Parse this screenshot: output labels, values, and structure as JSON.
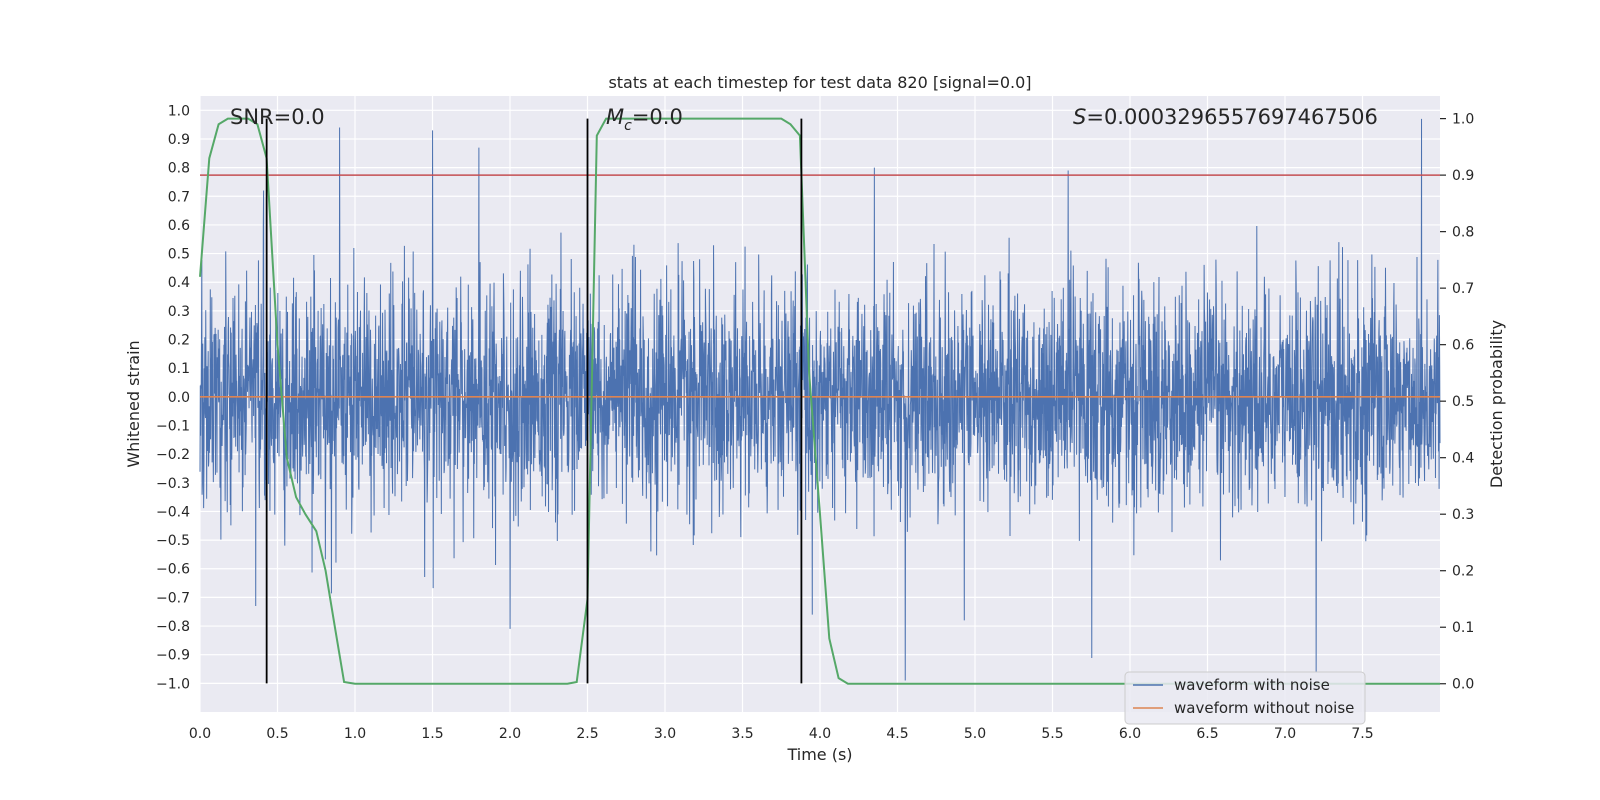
{
  "chart_data": {
    "type": "line",
    "title": "stats at each timestep for test data 820 [signal=0.0]",
    "xlabel": "Time (s)",
    "ylabel_left": "Whitened strain",
    "ylabel_right": "Detection probability",
    "xlim": [
      0.0,
      8.0
    ],
    "ylim_left": [
      -1.1,
      1.05
    ],
    "ylim_right": [
      -0.05,
      1.04
    ],
    "x_ticks": [
      "0.0",
      "0.5",
      "1.0",
      "1.5",
      "2.0",
      "2.5",
      "3.0",
      "3.5",
      "4.0",
      "4.5",
      "5.0",
      "5.5",
      "6.0",
      "6.5",
      "7.0",
      "7.5"
    ],
    "x_tick_values": [
      0,
      0.5,
      1,
      1.5,
      2,
      2.5,
      3,
      3.5,
      4,
      4.5,
      5,
      5.5,
      6,
      6.5,
      7,
      7.5
    ],
    "y_left_ticks": [
      "1.0",
      "0.9",
      "0.8",
      "0.7",
      "0.6",
      "0.5",
      "0.4",
      "0.3",
      "0.2",
      "0.1",
      "0.0",
      "−0.1",
      "−0.2",
      "−0.3",
      "−0.4",
      "−0.5",
      "−0.6",
      "−0.7",
      "−0.8",
      "−0.9",
      "−1.0"
    ],
    "y_left_tick_values": [
      1.0,
      0.9,
      0.8,
      0.7,
      0.6,
      0.5,
      0.4,
      0.3,
      0.2,
      0.1,
      0.0,
      -0.1,
      -0.2,
      -0.3,
      -0.4,
      -0.5,
      -0.6,
      -0.7,
      -0.8,
      -0.9,
      -1.0
    ],
    "y_right_ticks": [
      "1.0",
      "0.9",
      "0.8",
      "0.7",
      "0.6",
      "0.5",
      "0.4",
      "0.3",
      "0.2",
      "0.1",
      "0.0"
    ],
    "y_right_tick_values": [
      1.0,
      0.9,
      0.8,
      0.7,
      0.6,
      0.5,
      0.4,
      0.3,
      0.2,
      0.1,
      0.0
    ],
    "annotations": {
      "snr": "SNR=0.0",
      "mc_symbol": "M",
      "mc_sub": "c",
      "mc_value": "=0.0",
      "s_symbol": "S",
      "s_value": "=0.0003296557697467506"
    },
    "series": [
      {
        "name": "waveform with noise",
        "axis": "left",
        "color": "#4c72b0",
        "kind": "noise",
        "approx_range": [
          -0.99,
          0.97
        ],
        "note": "dense whitened-noise trace, 4096 samples over 8 s"
      },
      {
        "name": "waveform without noise",
        "axis": "left",
        "color": "#dd8452",
        "x": [
          0.0,
          8.0
        ],
        "y": [
          0.0,
          0.0
        ]
      },
      {
        "name": "detection probability",
        "axis": "right",
        "color": "#55a868",
        "x": [
          0.0,
          0.06,
          0.12,
          0.18,
          0.25,
          0.31,
          0.37,
          0.43,
          0.5,
          0.56,
          0.62,
          0.68,
          0.75,
          0.81,
          0.87,
          0.93,
          1.0,
          2.3,
          2.37,
          2.43,
          2.5,
          2.56,
          2.62,
          2.68,
          3.7,
          3.75,
          3.81,
          3.87,
          3.93,
          4.0,
          4.06,
          4.12,
          4.18,
          8.0
        ],
        "y": [
          0.72,
          0.93,
          0.99,
          1.0,
          1.0,
          1.0,
          0.99,
          0.93,
          0.6,
          0.4,
          0.33,
          0.3,
          0.27,
          0.2,
          0.1,
          0.003,
          0.0,
          0.0,
          0.0,
          0.003,
          0.15,
          0.97,
          1.0,
          1.0,
          1.0,
          1.0,
          0.99,
          0.97,
          0.55,
          0.3,
          0.08,
          0.01,
          0.0,
          0.0
        ]
      }
    ],
    "threshold": {
      "axis": "right",
      "value": 0.9,
      "color": "#c44e52"
    },
    "vlines": [
      0.43,
      2.5,
      3.88
    ],
    "vline_color": "#000000",
    "legend": {
      "position": "lower-right",
      "entries": [
        {
          "label": "waveform with noise",
          "color": "#4c72b0"
        },
        {
          "label": "waveform without noise",
          "color": "#dd8452"
        }
      ]
    }
  }
}
